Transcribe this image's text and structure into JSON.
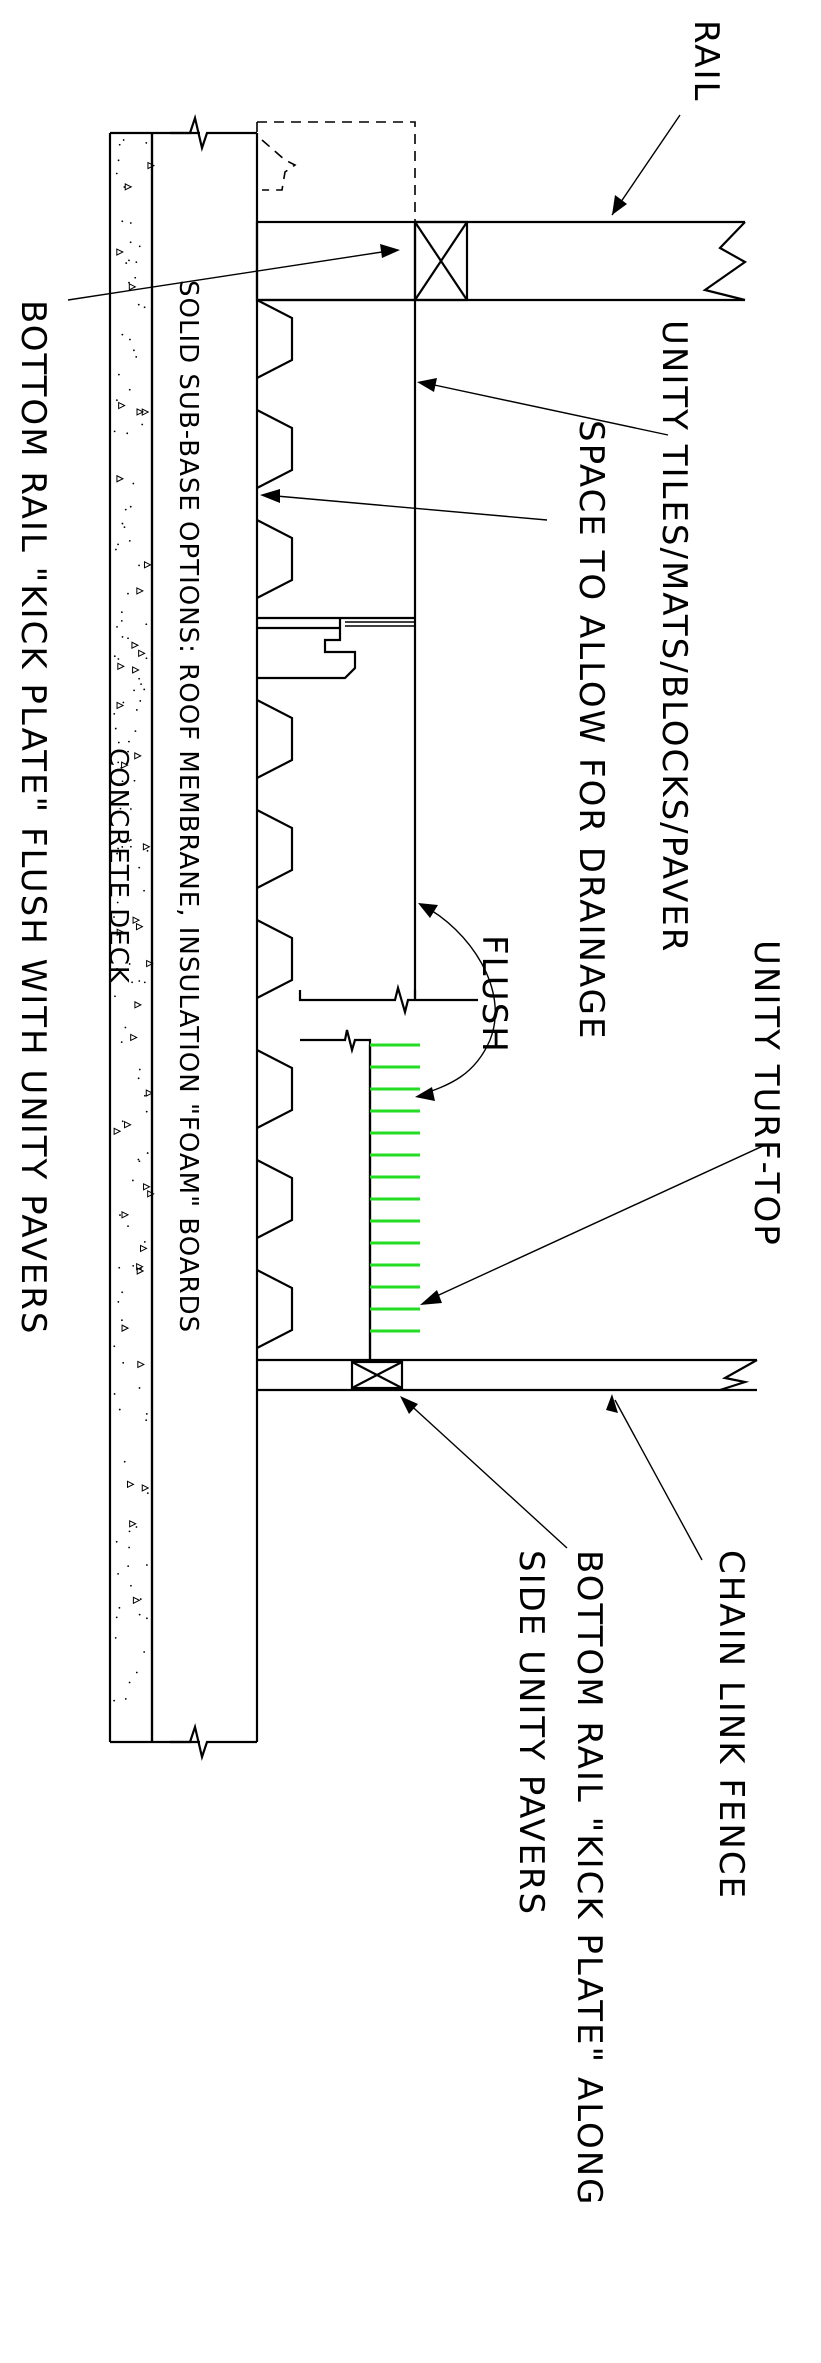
{
  "labels": {
    "rail": "RAIL",
    "unity_tiles": "UNITY TILES/MATS/BLOCKS/PAVER",
    "drainage": "SPACE TO ALLOW FOR DRAINAGE",
    "solid_subbase": "SOLID SUB-BASE OPTIONS: ROOF MEMBRANE, INSULATION \"FOAM\" BOARDS",
    "concrete_deck": "CONCRETE DECK",
    "bottom_rail_flush": "BOTTOM RAIL \"KICK PLATE\" FLUSH WITH UNITY PAVERS",
    "flush": "FLUSH",
    "turf_top": "UNITY TURF-TOP",
    "chain_link": "CHAIN LINK FENCE",
    "bottom_rail_along_1": "BOTTOM RAIL \"KICK PLATE\" ALONG",
    "bottom_rail_along_2": "SIDE UNITY PAVERS"
  },
  "colors": {
    "line": "#000000",
    "turf": "#22dd22",
    "background": "#ffffff"
  }
}
